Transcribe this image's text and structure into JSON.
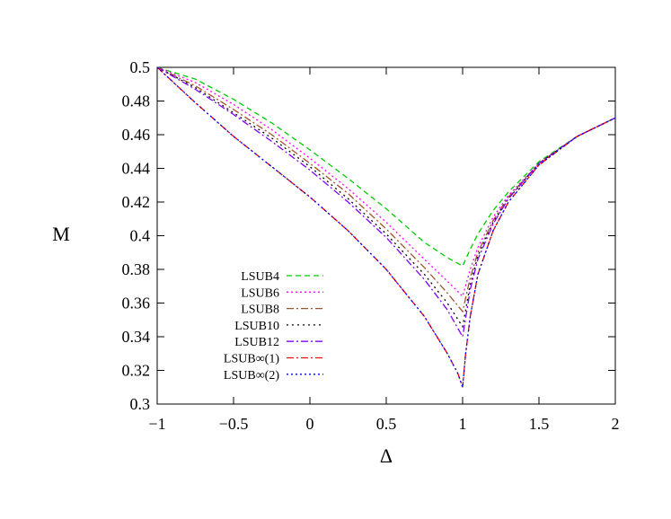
{
  "chart_data": {
    "type": "line",
    "xlabel": "Δ",
    "ylabel": "M",
    "xlim": [
      -1,
      2
    ],
    "ylim": [
      0.3,
      0.5
    ],
    "xticks": [
      -1,
      -0.5,
      0,
      0.5,
      1,
      1.5,
      2
    ],
    "xtick_labels": [
      "−1",
      "−0.5",
      "0",
      "0.5",
      "1",
      "1.5",
      "2"
    ],
    "yticks": [
      0.3,
      0.32,
      0.34,
      0.36,
      0.38,
      0.4,
      0.42,
      0.44,
      0.46,
      0.48,
      0.5
    ],
    "ytick_labels": [
      "0.3",
      "0.32",
      "0.34",
      "0.36",
      "0.38",
      "0.4",
      "0.42",
      "0.44",
      "0.46",
      "0.48",
      "0.5"
    ],
    "grid": false,
    "legend_position": "lower-left",
    "series": [
      {
        "name": "LSUB4",
        "color": "#00cc00",
        "dash": "6,4",
        "x": [
          -1,
          -0.75,
          -0.5,
          -0.25,
          0,
          0.25,
          0.5,
          0.75,
          0.9,
          1.0,
          1.05,
          1.1,
          1.2,
          1.3,
          1.5,
          1.75,
          2.0
        ],
        "y": [
          0.5,
          0.493,
          0.481,
          0.467,
          0.451,
          0.434,
          0.416,
          0.396,
          0.387,
          0.382,
          0.392,
          0.401,
          0.415,
          0.426,
          0.444,
          0.459,
          0.47
        ]
      },
      {
        "name": "LSUB6",
        "color": "#ff00ff",
        "dash": "2,3",
        "x": [
          -1,
          -0.75,
          -0.5,
          -0.25,
          0,
          0.25,
          0.5,
          0.75,
          0.9,
          1.0,
          1.05,
          1.1,
          1.2,
          1.3,
          1.5,
          1.75,
          2.0
        ],
        "y": [
          0.5,
          0.491,
          0.478,
          0.463,
          0.446,
          0.428,
          0.408,
          0.386,
          0.373,
          0.364,
          0.38,
          0.393,
          0.411,
          0.424,
          0.443,
          0.459,
          0.47
        ]
      },
      {
        "name": "LSUB8",
        "color": "#a0522d",
        "dash": "8,3,2,3",
        "x": [
          -1,
          -0.75,
          -0.5,
          -0.25,
          0,
          0.25,
          0.5,
          0.75,
          0.9,
          1.0,
          1.05,
          1.1,
          1.2,
          1.3,
          1.5,
          1.75,
          2.0
        ],
        "y": [
          0.5,
          0.489,
          0.475,
          0.46,
          0.443,
          0.425,
          0.404,
          0.381,
          0.366,
          0.355,
          0.375,
          0.39,
          0.409,
          0.423,
          0.443,
          0.459,
          0.47
        ]
      },
      {
        "name": "LSUB10",
        "color": "#000000",
        "dash": "2,4",
        "x": [
          -1,
          -0.75,
          -0.5,
          -0.25,
          0,
          0.25,
          0.5,
          0.75,
          0.9,
          1.0,
          1.05,
          1.1,
          1.2,
          1.3,
          1.5,
          1.75,
          2.0
        ],
        "y": [
          0.5,
          0.488,
          0.473,
          0.458,
          0.441,
          0.422,
          0.401,
          0.377,
          0.36,
          0.346,
          0.371,
          0.388,
          0.408,
          0.422,
          0.443,
          0.459,
          0.47
        ]
      },
      {
        "name": "LSUB12",
        "color": "#8000ff",
        "dash": "8,3,2,3",
        "x": [
          -1,
          -0.75,
          -0.5,
          -0.25,
          0,
          0.25,
          0.5,
          0.75,
          0.9,
          1.0,
          1.05,
          1.1,
          1.2,
          1.3,
          1.5,
          1.75,
          2.0
        ],
        "y": [
          0.5,
          0.487,
          0.472,
          0.456,
          0.439,
          0.42,
          0.399,
          0.374,
          0.356,
          0.34,
          0.368,
          0.386,
          0.407,
          0.422,
          0.443,
          0.459,
          0.47
        ]
      },
      {
        "name": "LSUB∞(1)",
        "color": "#ff0000",
        "dash": "8,3,2,3",
        "x": [
          -1,
          -0.75,
          -0.5,
          -0.25,
          0,
          0.25,
          0.5,
          0.75,
          0.9,
          0.97,
          1.0,
          1.02,
          1.05,
          1.1,
          1.2,
          1.3,
          1.5,
          1.75,
          2.0
        ],
        "y": [
          0.5,
          0.479,
          0.459,
          0.441,
          0.423,
          0.403,
          0.38,
          0.352,
          0.33,
          0.318,
          0.31,
          0.33,
          0.352,
          0.377,
          0.403,
          0.42,
          0.442,
          0.459,
          0.47
        ]
      },
      {
        "name": "LSUB∞(2)",
        "color": "#0000ff",
        "dash": "2,3",
        "x": [
          -1,
          -0.75,
          -0.5,
          -0.25,
          0,
          0.25,
          0.5,
          0.75,
          0.9,
          0.97,
          1.0,
          1.02,
          1.05,
          1.1,
          1.2,
          1.3,
          1.5,
          1.75,
          2.0
        ],
        "y": [
          0.5,
          0.479,
          0.459,
          0.441,
          0.423,
          0.403,
          0.38,
          0.352,
          0.33,
          0.318,
          0.31,
          0.33,
          0.352,
          0.377,
          0.403,
          0.42,
          0.442,
          0.459,
          0.47
        ]
      }
    ]
  }
}
